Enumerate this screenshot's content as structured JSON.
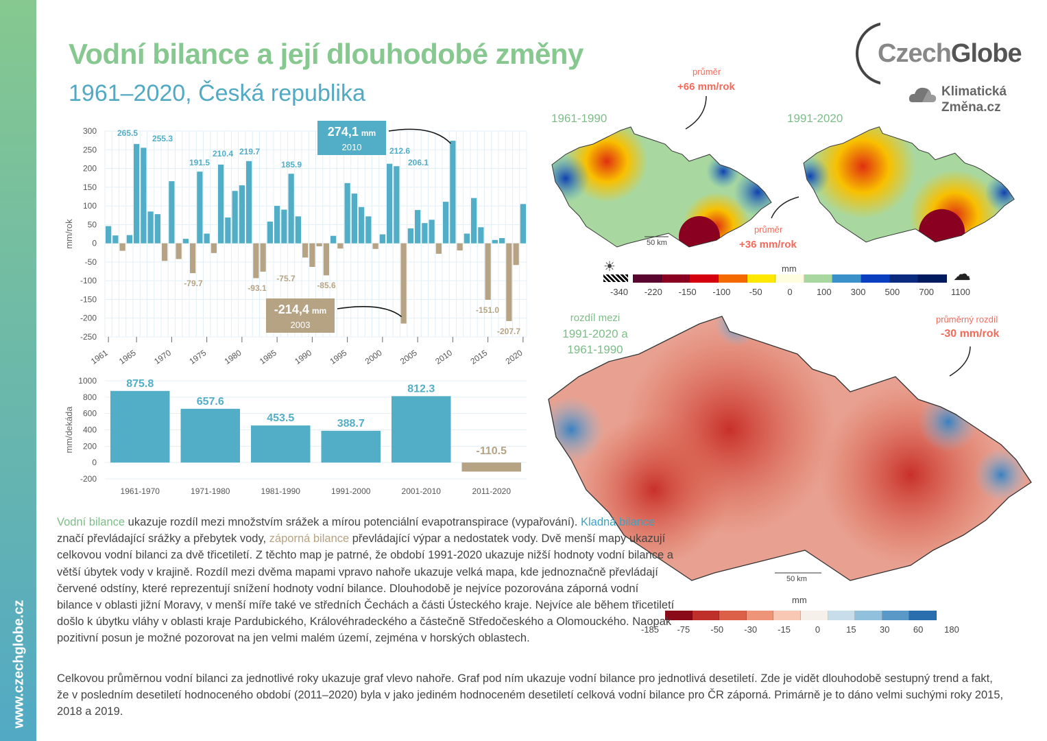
{
  "sidebar": {
    "url": "www.czechglobe.cz"
  },
  "header": {
    "title": "Vodní bilance a její dlouhodobé změny",
    "subtitle": "1961–2020, Česká republika"
  },
  "logo": {
    "main_a": "Czech",
    "main_b": "Globe",
    "sub1": "Klimatická",
    "sub2": "Změna.cz"
  },
  "colors": {
    "positive": "#52aec6",
    "negative": "#b5a384",
    "green": "#86c88f",
    "red_text": "#f26a5a"
  },
  "chart_data": [
    {
      "type": "bar",
      "ylabel": "mm/rok",
      "ylim": [
        -250,
        300
      ],
      "yticks": [
        300,
        250,
        200,
        150,
        100,
        50,
        0,
        -50,
        -100,
        -150,
        -200,
        -250
      ],
      "grid": true,
      "xtick_labels": [
        "1961",
        "1965",
        "1970",
        "1975",
        "1980",
        "1985",
        "1990",
        "1995",
        "2000",
        "2005",
        "2010",
        "2015",
        "2020"
      ],
      "x": [
        1961,
        1962,
        1963,
        1964,
        1965,
        1966,
        1967,
        1968,
        1969,
        1970,
        1971,
        1972,
        1973,
        1974,
        1975,
        1976,
        1977,
        1978,
        1979,
        1980,
        1981,
        1982,
        1983,
        1984,
        1985,
        1986,
        1987,
        1988,
        1989,
        1990,
        1991,
        1992,
        1993,
        1994,
        1995,
        1996,
        1997,
        1998,
        1999,
        2000,
        2001,
        2002,
        2003,
        2004,
        2005,
        2006,
        2007,
        2008,
        2009,
        2010,
        2011,
        2012,
        2013,
        2014,
        2015,
        2016,
        2017,
        2018,
        2019,
        2020
      ],
      "values": [
        46,
        21,
        -20,
        22,
        265.5,
        255.3,
        85,
        78,
        -47,
        166,
        -42,
        12,
        -79.7,
        191.5,
        26,
        -26,
        210.4,
        69,
        140,
        155,
        219.7,
        -93.1,
        -75.7,
        58,
        100,
        90,
        185.9,
        72,
        -38,
        -63,
        -8,
        -85.6,
        20,
        -14,
        161,
        133,
        97,
        72,
        -15,
        24,
        212.6,
        206.1,
        -214.4,
        40,
        89,
        54,
        63,
        -28,
        111,
        274.1,
        -19,
        26,
        121,
        43,
        -151.0,
        9,
        14,
        -207.7,
        -58,
        105
      ],
      "data_labels": [
        {
          "year": 1965,
          "text": "265.5"
        },
        {
          "year": 1966,
          "text": "255.3"
        },
        {
          "year": 1974,
          "text": "191.5"
        },
        {
          "year": 1977,
          "text": "210.4"
        },
        {
          "year": 1981,
          "text": "219.7"
        },
        {
          "year": 1987,
          "text": "185.9"
        },
        {
          "year": 1973,
          "text": "-79.7"
        },
        {
          "year": 1982,
          "text": "-93.1"
        },
        {
          "year": 1983,
          "text": "-75.7"
        },
        {
          "year": 1992,
          "text": "-85.6"
        },
        {
          "year": 2001,
          "text": "212.6"
        },
        {
          "year": 2002,
          "text": "206.1"
        },
        {
          "year": 2015,
          "text": "-151.0"
        },
        {
          "year": 2018,
          "text": "-207.7"
        }
      ],
      "callouts": [
        {
          "value": "274,1",
          "unit": "mm",
          "year": "2010"
        },
        {
          "value": "-214,4",
          "unit": "mm",
          "year": "2003"
        }
      ]
    },
    {
      "type": "bar",
      "ylabel": "mm/dekáda",
      "ylim": [
        -200,
        1000
      ],
      "yticks": [
        1000,
        800,
        600,
        400,
        200,
        0,
        -200
      ],
      "categories": [
        "1961-1970",
        "1971-1980",
        "1981-1990",
        "1991-2000",
        "2001-2010",
        "2011-2020"
      ],
      "values": [
        875.8,
        657.6,
        453.5,
        388.7,
        812.3,
        -110.5
      ],
      "data_labels": [
        "875.8",
        "657.6",
        "453.5",
        "388.7",
        "812.3",
        "-110.5"
      ]
    }
  ],
  "maps": {
    "small1": {
      "title": "1961-1990",
      "scale": "50 km"
    },
    "small2": {
      "title": "1991-2020"
    },
    "note1": {
      "label": "průměr",
      "value": "+66 mm/rok"
    },
    "note2": {
      "label": "průměr",
      "value": "+36 mm/rok"
    },
    "legend1": {
      "unit": "mm",
      "ticks": [
        "-340",
        "-220",
        "-150",
        "-100",
        "-50",
        "0",
        "100",
        "300",
        "500",
        "700",
        "1100"
      ],
      "colors": [
        "#5a0530",
        "#8a0020",
        "#d40010",
        "#f56a00",
        "#ffe800",
        "#fffde0",
        "#a8d8a0",
        "#3a90c8",
        "#0a40c0",
        "#0a2a80",
        "#001a60"
      ]
    },
    "big": {
      "title_lines": [
        "rozdíl mezi",
        "1991-2020 a",
        "1961-1990"
      ],
      "note_label": "průměrný rozdíl",
      "note_value": "-30 mm/rok",
      "scale": "50 km"
    },
    "legend2": {
      "unit": "mm",
      "ticks": [
        "-185",
        "-75",
        "-50",
        "-30",
        "-15",
        "0",
        "15",
        "30",
        "60",
        "180"
      ],
      "colors": [
        "#8a0a1a",
        "#c0302a",
        "#dc6048",
        "#ee9478",
        "#f8c8b4",
        "#f5f0ea",
        "#c8ddea",
        "#90c0dc",
        "#5a98c8",
        "#2a6eae"
      ]
    }
  },
  "text": {
    "p1": [
      {
        "t": "Vodní bilance",
        "c": "green"
      },
      {
        "t": " ukazuje rozdíl mezi množstvím srážek a mírou potenciální evapotranspirace (vypařování). "
      },
      {
        "t": "Kladná bilance",
        "c": "blue"
      },
      {
        "t": " značí převládající srážky a přebytek vody, "
      },
      {
        "t": "záporná bilance",
        "c": "tan"
      },
      {
        "t": " převládající výpar a nedostatek vody. Dvě menší mapy ukazují celkovou vodní bilanci za dvě třicetiletí. Z těchto map je patrné, že období 1991-2020 ukazuje nižší hodnoty vodní bilance a větší úbytek vody v krajině. Rozdíl mezi dvěma mapami vpravo nahoře ukazuje velká mapa, kde jednoznačně převládají červené odstíny, které reprezentují snížení hodnoty vodní bilance. Dlouhodobě je nejvíce pozorována záporná vodní bilance v oblasti jižní Moravy, v menší míře také ve středních Čechách a části Ústeckého kraje. Nejvíce ale během třicetiletí došlo k úbytku vláhy v oblasti kraje Pardubického, Královéhradeckého a částečně Středočeského a Olomouckého. Naopak pozitivní posun je možné pozorovat na jen velmi malém území, zejména v horských oblastech."
      }
    ],
    "p2": "Celkovou průměrnou vodní bilanci za jednotlivé roky ukazuje graf vlevo nahoře. Graf pod ním ukazuje vodní bilance pro jednotlivá desetiletí. Zde je vidět dlouhodobě sestupný trend a fakt, že v posledním desetiletí hodnoceného období (2011–2020) byla v jako jediném hodnoceném desetiletí celková vodní bilance pro ČR záporná. Primárně je to dáno velmi suchými roky 2015, 2018 a 2019."
  }
}
